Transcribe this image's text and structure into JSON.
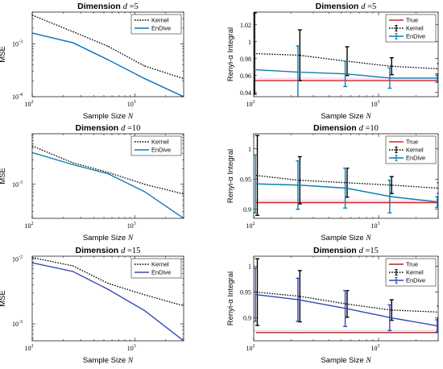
{
  "chart_data": [
    {
      "type": "line",
      "title": "Dimension",
      "title_var": "d",
      "title_value": "=5",
      "xlabel": "Sample Size",
      "xlabel_var": "N",
      "ylabel": "MSE",
      "xscale": "log",
      "yscale": "log",
      "xlim": [
        100,
        3000
      ],
      "ylim": [
        0.0001,
        0.004
      ],
      "x_ticks": [
        {
          "value": 100,
          "base": "10",
          "exp": "2"
        },
        {
          "value": 1000,
          "base": "10",
          "exp": "3"
        }
      ],
      "y_ticks": [
        {
          "value": 0.0001,
          "base": "10",
          "exp": "-4"
        },
        {
          "value": 0.001,
          "base": "10",
          "exp": "-3"
        }
      ],
      "legend_position": "top-right",
      "x": [
        100,
        250,
        550,
        1250,
        3000
      ],
      "series": [
        {
          "name": "Kernel",
          "values": [
            0.0035,
            0.0017,
            0.0009,
            0.00038,
            0.00022
          ],
          "color": "#000000",
          "style": "dotted"
        },
        {
          "name": "EnDive",
          "values": [
            0.0016,
            0.00105,
            0.0005,
            0.00022,
            0.0001
          ],
          "color": "#0072BD",
          "style": "solid"
        }
      ]
    },
    {
      "type": "line",
      "title": "Dimension",
      "title_var": "d",
      "title_value": "=5",
      "xlabel": "Sample Size",
      "xlabel_var": "N",
      "ylabel": "Renyi-α Integral",
      "xscale": "log",
      "yscale": "linear",
      "xlim": [
        100,
        3000
      ],
      "ylim": [
        0.935,
        1.035
      ],
      "x_ticks": [
        {
          "value": 100,
          "base": "10",
          "exp": "2"
        },
        {
          "value": 1000,
          "base": "10",
          "exp": "3"
        }
      ],
      "y_ticks": [
        {
          "value": 0.94,
          "label": "0.94"
        },
        {
          "value": 0.96,
          "label": "0.96"
        },
        {
          "value": 0.98,
          "label": "0.98"
        },
        {
          "value": 1.0,
          "label": "1"
        },
        {
          "value": 1.02,
          "label": "1.02"
        }
      ],
      "legend_position": "top-right",
      "x": [
        100,
        230,
        550,
        1250,
        3000
      ],
      "series": [
        {
          "name": "True",
          "values": [
            0.954,
            0.954,
            0.954,
            0.954,
            0.954
          ],
          "color": "#D62728",
          "style": "solid",
          "errors": null
        },
        {
          "name": "Kernel",
          "values": [
            0.986,
            0.984,
            0.977,
            0.971,
            0.968
          ],
          "color": "#000000",
          "style": "dotted",
          "errors": [
            0.048,
            0.03,
            0.017,
            0.01,
            0.006
          ]
        },
        {
          "name": "EnDive",
          "values": [
            0.967,
            0.964,
            0.962,
            0.957,
            0.957
          ],
          "color": "#0E7FB0",
          "style": "solid",
          "errors": [
            0.035,
            0.031,
            0.015,
            0.012,
            0.005
          ]
        }
      ]
    },
    {
      "type": "line",
      "title": "Dimension",
      "title_var": "d",
      "title_value": "=10",
      "xlabel": "Sample Size",
      "xlabel_var": "N",
      "ylabel": "MSE",
      "xscale": "log",
      "yscale": "log",
      "xlim": [
        100,
        3000
      ],
      "ylim": [
        0.00022,
        0.0095
      ],
      "x_ticks": [
        {
          "value": 100,
          "base": "10",
          "exp": "2"
        },
        {
          "value": 1000,
          "base": "10",
          "exp": "3"
        }
      ],
      "y_ticks": [
        {
          "value": 0.001,
          "base": "10",
          "exp": "-3"
        }
      ],
      "legend_position": "top-right",
      "x": [
        100,
        250,
        550,
        1250,
        3000
      ],
      "series": [
        {
          "name": "Kernel",
          "values": [
            0.0055,
            0.0026,
            0.0017,
            0.001,
            0.00065
          ],
          "color": "#000000",
          "style": "dotted"
        },
        {
          "name": "EnDive",
          "values": [
            0.0041,
            0.0024,
            0.0016,
            0.00072,
            0.00022
          ],
          "color": "#0E7FB0",
          "style": "solid"
        }
      ]
    },
    {
      "type": "line",
      "title": "Dimension",
      "title_var": "d",
      "title_value": "=10",
      "xlabel": "Sample Size",
      "xlabel_var": "N",
      "ylabel": "Renyi-α Integral",
      "xscale": "log",
      "yscale": "linear",
      "xlim": [
        100,
        3000
      ],
      "ylim": [
        0.885,
        1.025
      ],
      "x_ticks": [
        {
          "value": 100,
          "base": "10",
          "exp": "2"
        },
        {
          "value": 1000,
          "base": "10",
          "exp": "3"
        }
      ],
      "y_ticks": [
        {
          "value": 0.9,
          "label": "0.9"
        },
        {
          "value": 0.95,
          "label": "0.95"
        },
        {
          "value": 1.0,
          "label": "1"
        }
      ],
      "legend_position": "top-right",
      "x": [
        105,
        230,
        550,
        1250,
        3000
      ],
      "series": [
        {
          "name": "True",
          "values": [
            0.911,
            0.911,
            0.911,
            0.911,
            0.911
          ],
          "color": "#D62728",
          "style": "solid",
          "errors": null
        },
        {
          "name": "Kernel",
          "values": [
            0.956,
            0.948,
            0.944,
            0.94,
            0.935
          ],
          "color": "#000000",
          "style": "dotted",
          "errors": [
            0.066,
            0.039,
            0.024,
            0.014,
            0.009
          ]
        },
        {
          "name": "EnDive",
          "values": [
            0.942,
            0.94,
            0.935,
            0.921,
            0.912
          ],
          "color": "#0E7FB0",
          "style": "solid",
          "errors": [
            0.048,
            0.04,
            0.033,
            0.027,
            0.009
          ]
        }
      ]
    },
    {
      "type": "line",
      "title": "Dimension",
      "title_var": "d",
      "title_value": "=15",
      "xlabel": "Sample Size",
      "xlabel_var": "N",
      "ylabel": "MSE",
      "xscale": "log",
      "yscale": "log",
      "xlim": [
        100,
        3000
      ],
      "ylim": [
        0.00055,
        0.011
      ],
      "x_ticks": [
        {
          "value": 100,
          "base": "10",
          "exp": "2"
        },
        {
          "value": 1000,
          "base": "10",
          "exp": "3"
        }
      ],
      "y_ticks": [
        {
          "value": 0.001,
          "base": "10",
          "exp": "-3"
        },
        {
          "value": 0.01,
          "base": "10",
          "exp": "-2"
        }
      ],
      "legend_position": "top-right",
      "x": [
        100,
        250,
        550,
        1250,
        3000
      ],
      "series": [
        {
          "name": "Kernel",
          "values": [
            0.0105,
            0.0078,
            0.0042,
            0.0028,
            0.0019
          ],
          "color": "#000000",
          "style": "dotted"
        },
        {
          "name": "EnDive",
          "values": [
            0.0087,
            0.0064,
            0.0034,
            0.0016,
            0.00055
          ],
          "color": "#3447B5",
          "style": "solid"
        }
      ]
    },
    {
      "type": "line",
      "title": "Dimension",
      "title_var": "d",
      "title_value": "=15",
      "xlabel": "Sample Size",
      "xlabel_var": "N",
      "ylabel": "Renyi-α Integral",
      "xscale": "log",
      "yscale": "linear",
      "xlim": [
        100,
        3000
      ],
      "ylim": [
        0.855,
        1.02
      ],
      "x_ticks": [
        {
          "value": 100,
          "base": "10",
          "exp": "2"
        },
        {
          "value": 1000,
          "base": "10",
          "exp": "3"
        }
      ],
      "y_ticks": [
        {
          "value": 0.9,
          "label": "0.9"
        },
        {
          "value": 0.95,
          "label": "0.95"
        },
        {
          "value": 1.0,
          "label": "1"
        }
      ],
      "legend_position": "top-right",
      "x": [
        105,
        230,
        550,
        1250,
        3000
      ],
      "series": [
        {
          "name": "True",
          "values": [
            0.871,
            0.871,
            0.871,
            0.871,
            0.871
          ],
          "color": "#A0302A",
          "style": "solid",
          "errors": null
        },
        {
          "name": "Kernel",
          "values": [
            0.95,
            0.942,
            0.927,
            0.915,
            0.911
          ],
          "color": "#000000",
          "style": "dotted",
          "errors": [
            0.065,
            0.05,
            0.026,
            0.02,
            0.012
          ]
        },
        {
          "name": "EnDive",
          "values": [
            0.945,
            0.935,
            0.918,
            0.9,
            0.884
          ],
          "color": "#3447B5",
          "style": "solid",
          "errors": [
            0.052,
            0.042,
            0.035,
            0.025,
            0.012
          ]
        }
      ]
    }
  ]
}
